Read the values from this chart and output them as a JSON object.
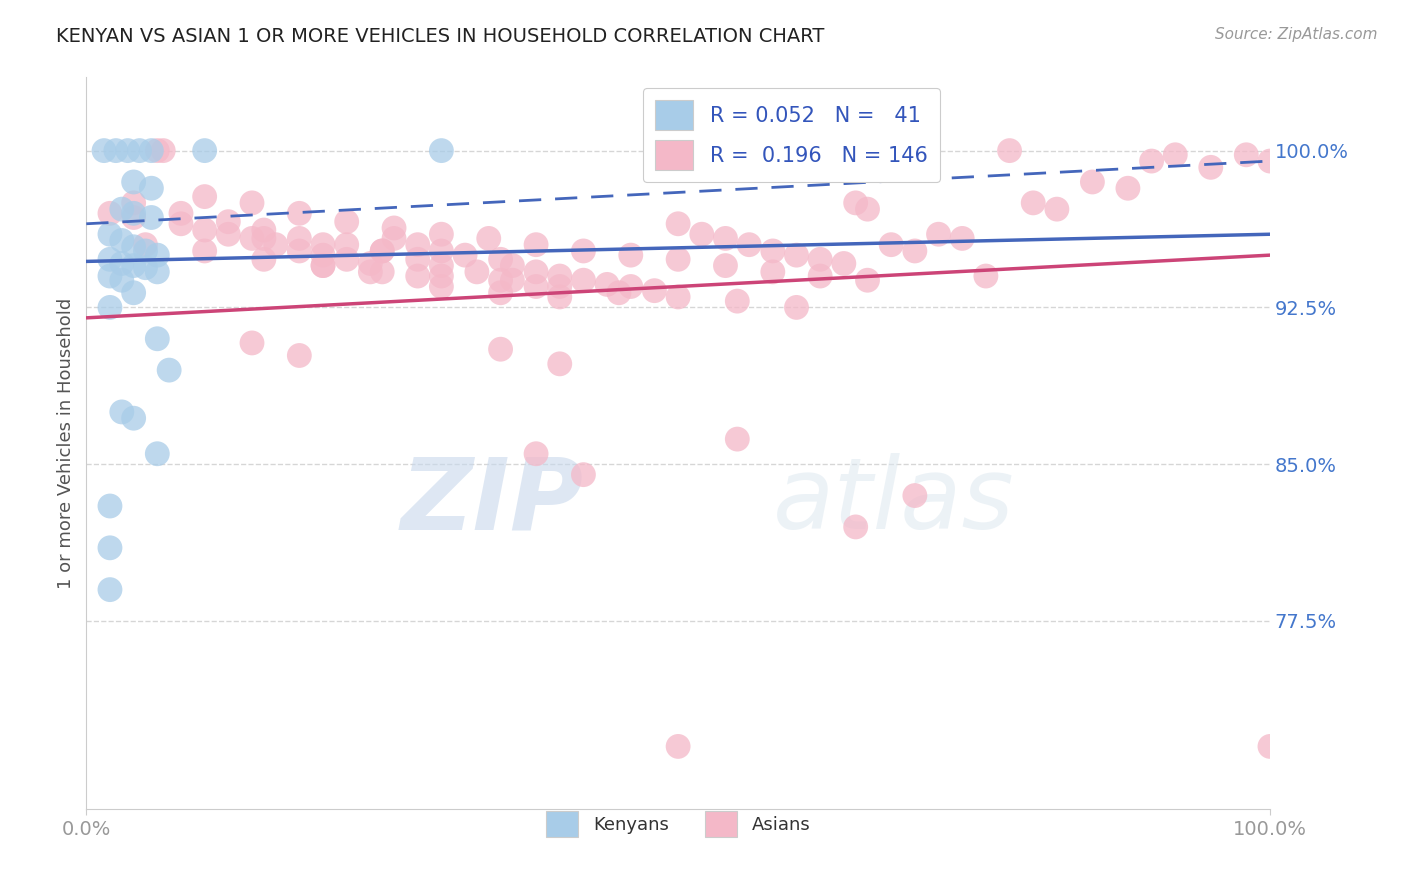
{
  "title": "KENYAN VS ASIAN 1 OR MORE VEHICLES IN HOUSEHOLD CORRELATION CHART",
  "source_text": "Source: ZipAtlas.com",
  "ylabel": "1 or more Vehicles in Household",
  "xlim": [
    0.0,
    1.0
  ],
  "ylim": [
    0.685,
    1.035
  ],
  "yticks": [
    0.775,
    0.85,
    0.925,
    1.0
  ],
  "ytick_labels": [
    "77.5%",
    "85.0%",
    "92.5%",
    "100.0%"
  ],
  "xtick_labels": [
    "0.0%",
    "100.0%"
  ],
  "xticks": [
    0.0,
    1.0
  ],
  "legend_r_blue": "0.052",
  "legend_n_blue": "41",
  "legend_r_pink": "0.196",
  "legend_n_pink": "146",
  "blue_color": "#a8cce8",
  "pink_color": "#f4b8c8",
  "trend_blue_color": "#4466bb",
  "trend_pink_color": "#cc4477",
  "watermark_zip": "ZIP",
  "watermark_atlas": "atlas",
  "scatter_blue": [
    [
      0.015,
      1.0
    ],
    [
      0.025,
      1.0
    ],
    [
      0.035,
      1.0
    ],
    [
      0.045,
      1.0
    ],
    [
      0.055,
      1.0
    ],
    [
      0.1,
      1.0
    ],
    [
      0.3,
      1.0
    ],
    [
      0.04,
      0.985
    ],
    [
      0.055,
      0.982
    ],
    [
      0.03,
      0.972
    ],
    [
      0.04,
      0.97
    ],
    [
      0.055,
      0.968
    ],
    [
      0.02,
      0.96
    ],
    [
      0.03,
      0.957
    ],
    [
      0.04,
      0.954
    ],
    [
      0.05,
      0.952
    ],
    [
      0.06,
      0.95
    ],
    [
      0.02,
      0.948
    ],
    [
      0.03,
      0.946
    ],
    [
      0.04,
      0.945
    ],
    [
      0.05,
      0.944
    ],
    [
      0.06,
      0.942
    ],
    [
      0.02,
      0.94
    ],
    [
      0.03,
      0.938
    ],
    [
      0.04,
      0.932
    ],
    [
      0.02,
      0.925
    ],
    [
      0.06,
      0.91
    ],
    [
      0.07,
      0.895
    ],
    [
      0.03,
      0.875
    ],
    [
      0.04,
      0.872
    ],
    [
      0.06,
      0.855
    ],
    [
      0.02,
      0.83
    ],
    [
      0.02,
      0.81
    ],
    [
      0.02,
      0.79
    ]
  ],
  "scatter_pink": [
    [
      0.02,
      0.97
    ],
    [
      0.04,
      0.968
    ],
    [
      0.06,
      1.0
    ],
    [
      0.065,
      1.0
    ],
    [
      0.08,
      0.965
    ],
    [
      0.1,
      0.962
    ],
    [
      0.12,
      0.96
    ],
    [
      0.14,
      0.958
    ],
    [
      0.16,
      0.955
    ],
    [
      0.18,
      0.952
    ],
    [
      0.2,
      0.95
    ],
    [
      0.22,
      0.948
    ],
    [
      0.24,
      0.946
    ],
    [
      0.26,
      0.958
    ],
    [
      0.28,
      0.955
    ],
    [
      0.3,
      0.952
    ],
    [
      0.32,
      0.95
    ],
    [
      0.35,
      0.948
    ],
    [
      0.36,
      0.945
    ],
    [
      0.38,
      0.942
    ],
    [
      0.4,
      0.94
    ],
    [
      0.42,
      0.938
    ],
    [
      0.44,
      0.936
    ],
    [
      0.46,
      0.935
    ],
    [
      0.48,
      0.933
    ],
    [
      0.5,
      0.965
    ],
    [
      0.52,
      0.96
    ],
    [
      0.54,
      0.958
    ],
    [
      0.56,
      0.955
    ],
    [
      0.58,
      0.952
    ],
    [
      0.6,
      0.95
    ],
    [
      0.62,
      0.948
    ],
    [
      0.64,
      0.946
    ],
    [
      0.65,
      0.975
    ],
    [
      0.66,
      0.972
    ],
    [
      0.68,
      0.955
    ],
    [
      0.7,
      0.952
    ],
    [
      0.72,
      0.96
    ],
    [
      0.74,
      0.958
    ],
    [
      0.76,
      0.94
    ],
    [
      0.78,
      1.0
    ],
    [
      0.8,
      0.975
    ],
    [
      0.82,
      0.972
    ],
    [
      0.85,
      0.985
    ],
    [
      0.88,
      0.982
    ],
    [
      0.9,
      0.995
    ],
    [
      0.92,
      0.998
    ],
    [
      0.95,
      0.992
    ],
    [
      0.98,
      0.998
    ],
    [
      1.0,
      0.995
    ],
    [
      0.04,
      0.975
    ],
    [
      0.08,
      0.97
    ],
    [
      0.12,
      0.966
    ],
    [
      0.15,
      0.962
    ],
    [
      0.18,
      0.958
    ],
    [
      0.22,
      0.955
    ],
    [
      0.25,
      0.952
    ],
    [
      0.28,
      0.948
    ],
    [
      0.3,
      0.945
    ],
    [
      0.33,
      0.942
    ],
    [
      0.36,
      0.938
    ],
    [
      0.38,
      0.935
    ],
    [
      0.1,
      0.978
    ],
    [
      0.14,
      0.975
    ],
    [
      0.18,
      0.97
    ],
    [
      0.22,
      0.966
    ],
    [
      0.26,
      0.963
    ],
    [
      0.3,
      0.96
    ],
    [
      0.34,
      0.958
    ],
    [
      0.38,
      0.955
    ],
    [
      0.42,
      0.952
    ],
    [
      0.46,
      0.95
    ],
    [
      0.5,
      0.948
    ],
    [
      0.54,
      0.945
    ],
    [
      0.58,
      0.942
    ],
    [
      0.62,
      0.94
    ],
    [
      0.66,
      0.938
    ],
    [
      0.05,
      0.955
    ],
    [
      0.1,
      0.952
    ],
    [
      0.15,
      0.948
    ],
    [
      0.2,
      0.945
    ],
    [
      0.25,
      0.942
    ],
    [
      0.3,
      0.94
    ],
    [
      0.35,
      0.938
    ],
    [
      0.4,
      0.935
    ],
    [
      0.45,
      0.932
    ],
    [
      0.5,
      0.93
    ],
    [
      0.55,
      0.928
    ],
    [
      0.6,
      0.925
    ],
    [
      0.3,
      0.935
    ],
    [
      0.35,
      0.932
    ],
    [
      0.4,
      0.93
    ],
    [
      0.2,
      0.945
    ],
    [
      0.24,
      0.942
    ],
    [
      0.28,
      0.94
    ],
    [
      0.15,
      0.958
    ],
    [
      0.2,
      0.955
    ],
    [
      0.25,
      0.952
    ],
    [
      0.14,
      0.908
    ],
    [
      0.18,
      0.902
    ],
    [
      0.35,
      0.905
    ],
    [
      0.4,
      0.898
    ],
    [
      0.38,
      0.855
    ],
    [
      0.42,
      0.845
    ],
    [
      0.55,
      0.862
    ],
    [
      0.7,
      0.835
    ],
    [
      0.65,
      0.82
    ],
    [
      0.5,
      0.715
    ],
    [
      1.0,
      0.715
    ]
  ],
  "blue_trend": [
    0.0,
    0.947,
    1.0,
    0.96
  ],
  "pink_trend": [
    0.0,
    0.92,
    1.0,
    0.95
  ],
  "blue_dashed": [
    0.0,
    0.965,
    1.0,
    0.995
  ],
  "background_color": "#ffffff",
  "grid_color": "#cccccc",
  "title_color": "#222222",
  "axis_label_color": "#555555",
  "tick_label_color_y": "#4477cc",
  "tick_label_color_x": "#999999"
}
